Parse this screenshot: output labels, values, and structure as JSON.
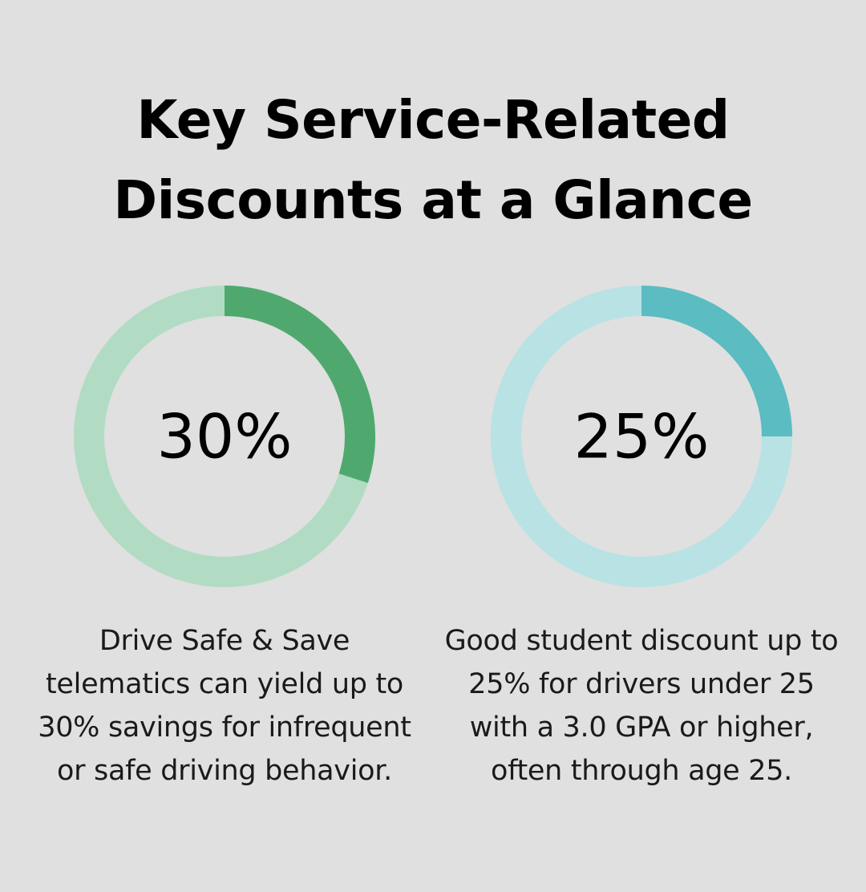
{
  "title": {
    "line1": "Key Service-Related",
    "line2": "Discounts at a Glance"
  },
  "chart_data": [
    {
      "type": "pie",
      "variant": "donut",
      "value": 30,
      "max": 100,
      "label": "30%",
      "description": "Drive Safe & Save telematics can yield up to 30% savings for infrequent or safe driving behavior.",
      "colors": {
        "filled": "#4fa96f",
        "track": "#b1dcc3"
      }
    },
    {
      "type": "pie",
      "variant": "donut",
      "value": 25,
      "max": 100,
      "label": "25%",
      "description": "Good student discount up to 25% for drivers under 25 with a 3.0 GPA or higher, often through age 25.",
      "colors": {
        "filled": "#5bbcc2",
        "track": "#b8e2e4"
      }
    }
  ]
}
